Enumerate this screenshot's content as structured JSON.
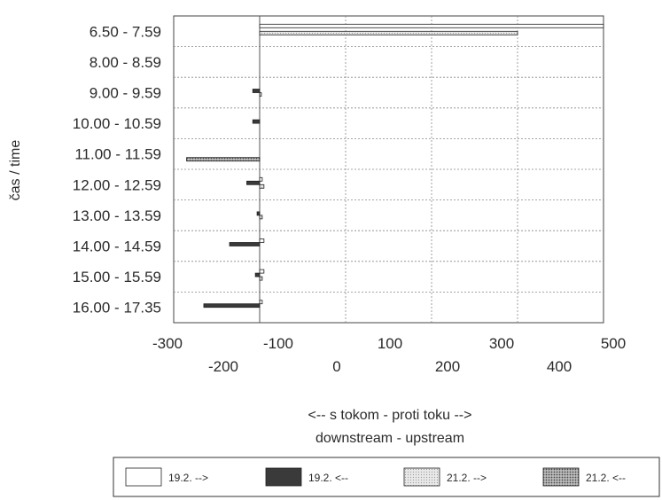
{
  "chart_data": {
    "type": "bar",
    "orientation": "horizontal",
    "categories": [
      "6.50 - 7.59",
      "8.00 - 8.59",
      "9.00 - 9.59",
      "10.00 - 10.59",
      "11.00 - 11.59",
      "12.00 - 12.59",
      "13.00 - 13.59",
      "14.00 - 14.59",
      "15.00 - 15.59",
      "16.00 - 17.35"
    ],
    "series": [
      {
        "name": "19.2. -->",
        "values": [
          400,
          0,
          0,
          0,
          0,
          3,
          0,
          5,
          5,
          3
        ],
        "color": "#ffffff"
      },
      {
        "name": "19.2. <--",
        "values": [
          0,
          0,
          -8,
          -8,
          0,
          -15,
          -3,
          -35,
          -5,
          -65
        ],
        "color": "#3a3a3a"
      },
      {
        "name": "21.2. -->",
        "values": [
          300,
          0,
          2,
          0,
          0,
          5,
          3,
          0,
          3,
          0
        ],
        "color": "#d9d9d9"
      },
      {
        "name": "21.2. <--",
        "values": [
          0,
          0,
          0,
          0,
          -85,
          0,
          0,
          0,
          0,
          0
        ],
        "color": "#9a9a9a"
      }
    ],
    "xlim": [
      -100,
      400
    ],
    "ylabel": "čas / time",
    "xlabel_line1": "<-- s tokom - proti toku -->",
    "xlabel_line2": "downstream - upstream",
    "x_ticks_top": [
      "-300",
      "-100",
      "100",
      "300",
      "500"
    ],
    "x_ticks_bottom": [
      "-200",
      "0",
      "200",
      "400"
    ],
    "grid": true,
    "legend_position": "bottom"
  }
}
